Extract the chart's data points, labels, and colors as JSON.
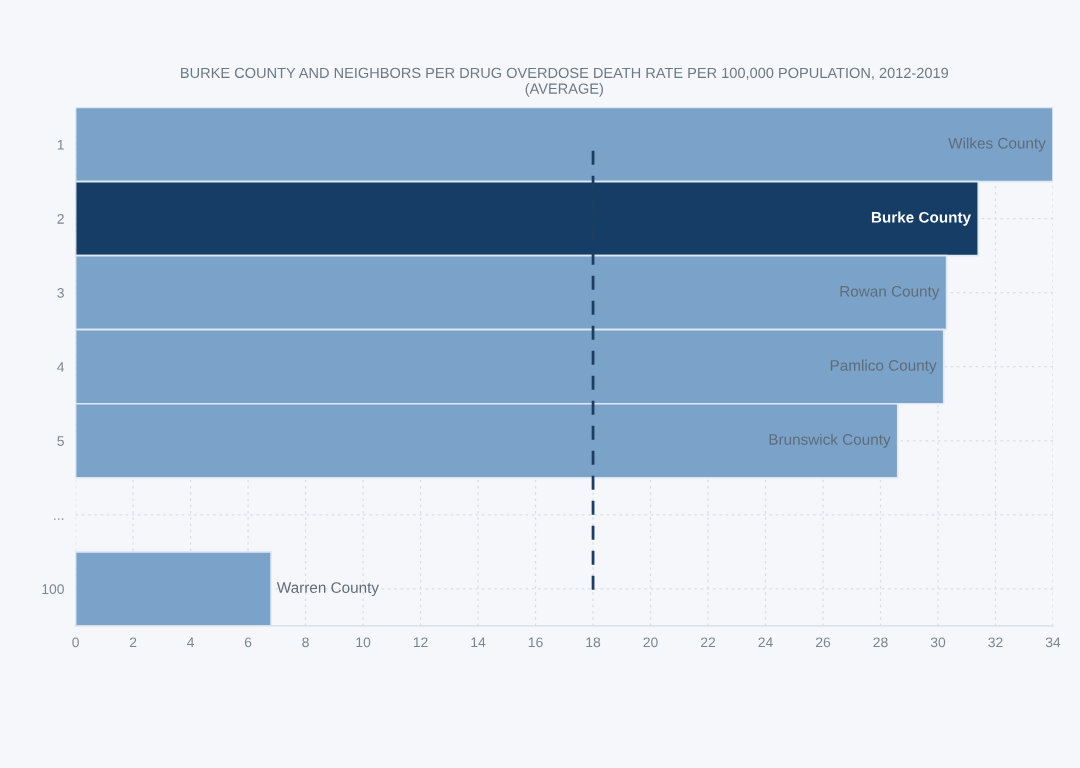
{
  "chart_data": {
    "type": "bar",
    "orientation": "horizontal",
    "title": "BURKE COUNTY AND NEIGHBORS PER DRUG OVERDOSE DEATH RATE PER 100,000 POPULATION, 2012-2019\n(AVERAGE)",
    "categories": [
      "1",
      "2",
      "3",
      "4",
      "5",
      "...",
      "100"
    ],
    "values": [
      34.0,
      31.4,
      30.3,
      30.2,
      28.6,
      null,
      6.8
    ],
    "colors": [
      "#7ba3c9",
      "#163d66",
      "#7ba3c9",
      "#7ba3c9",
      "#7ba3c9",
      "#7ba3c9",
      "#7ba3c9"
    ],
    "xlim": [
      0,
      34
    ],
    "xticks": [
      0,
      2,
      4,
      6,
      8,
      10,
      12,
      14,
      16,
      18,
      20,
      22,
      24,
      26,
      28,
      30,
      32,
      34
    ],
    "grid": true,
    "ref_lines": [
      {
        "axis": "x",
        "value": 18,
        "color": "#1f3d63",
        "line_style": "dashed"
      }
    ],
    "annotations": [
      {
        "text": "Wilkes County",
        "x": 34.0,
        "y": "1"
      },
      {
        "text": "Burke County",
        "x": 31.4,
        "y": "2"
      },
      {
        "text": "Rowan County",
        "x": 30.3,
        "y": "3"
      },
      {
        "text": "Pamlico County",
        "x": 30.2,
        "y": "4"
      },
      {
        "text": "Brunswick County",
        "x": 28.6,
        "y": "5"
      },
      {
        "text": "Warren County",
        "x": 6.8,
        "y": "100"
      }
    ]
  }
}
